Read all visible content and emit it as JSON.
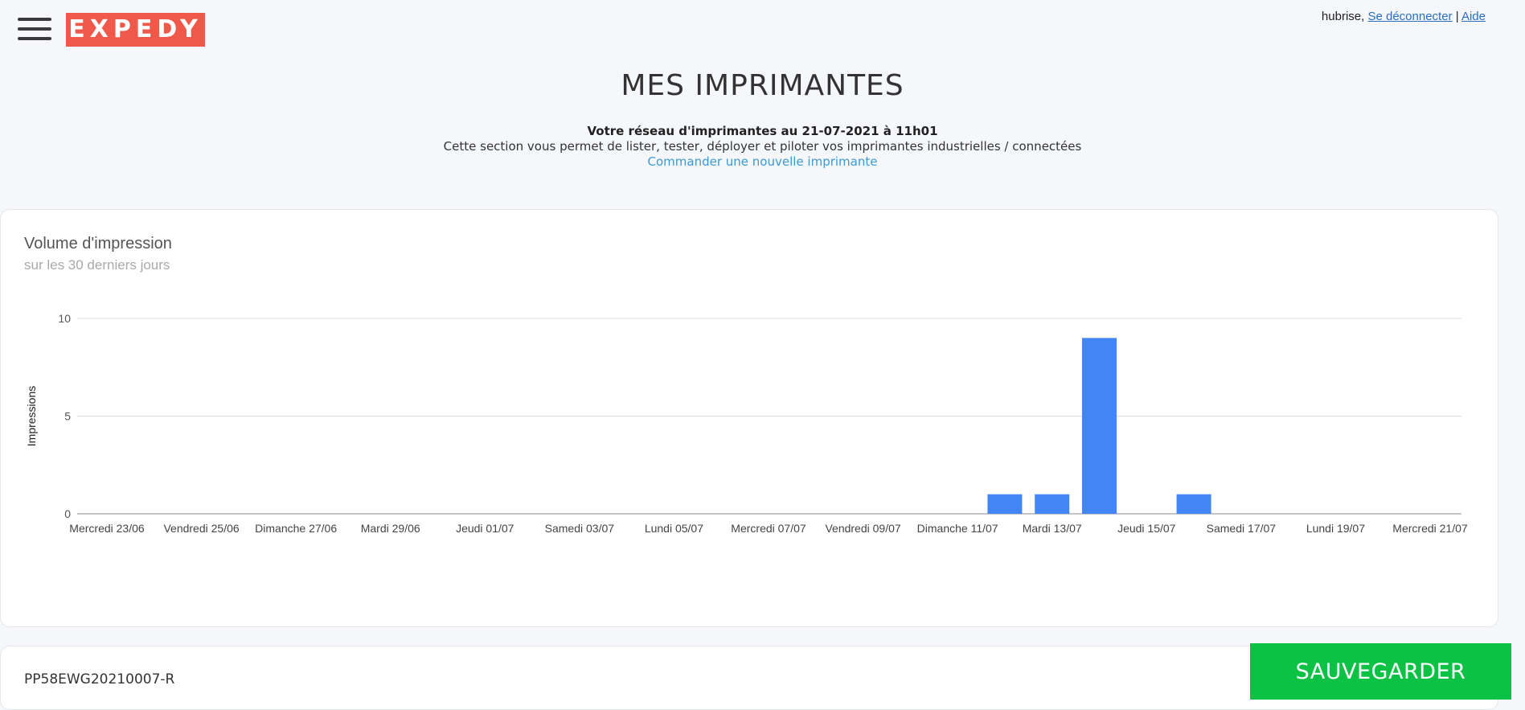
{
  "header": {
    "logo_text": "EXPEDY",
    "user_name": "hubrise,",
    "logout_label": "Se déconnecter",
    "separator": "|",
    "help_label": "Aide"
  },
  "page": {
    "title": "MES IMPRIMANTES",
    "network_line": "Votre réseau d'imprimantes au 21-07-2021 à 11h01",
    "description": "Cette section vous permet de lister, tester, déployer et piloter vos imprimantes industrielles / connectées",
    "order_link": "Commander une nouvelle imprimante"
  },
  "chart_card": {
    "title": "Volume d'impression",
    "subtitle": "sur les 30 derniers jours"
  },
  "chart_data": {
    "type": "bar",
    "title": "Volume d'impression",
    "subtitle": "sur les 30 derniers jours",
    "ylabel": "Impressions",
    "xlabel": "",
    "ylim": [
      0,
      10
    ],
    "yticks": [
      0,
      5,
      10
    ],
    "categories": [
      "23/06",
      "24/06",
      "25/06",
      "26/06",
      "27/06",
      "28/06",
      "29/06",
      "30/06",
      "01/07",
      "02/07",
      "03/07",
      "04/07",
      "05/07",
      "06/07",
      "07/07",
      "08/07",
      "09/07",
      "10/07",
      "11/07",
      "12/07",
      "13/07",
      "14/07",
      "15/07",
      "16/07",
      "17/07",
      "18/07",
      "19/07",
      "20/07",
      "21/07"
    ],
    "values": [
      0,
      0,
      0,
      0,
      0,
      0,
      0,
      0,
      0,
      0,
      0,
      0,
      0,
      0,
      0,
      0,
      0,
      0,
      0,
      1,
      1,
      9,
      0,
      1,
      0,
      0,
      0,
      0,
      0
    ],
    "xtick_labels": [
      {
        "index": 0,
        "label": "Mercredi 23/06"
      },
      {
        "index": 2,
        "label": "Vendredi 25/06"
      },
      {
        "index": 4,
        "label": "Dimanche 27/06"
      },
      {
        "index": 6,
        "label": "Mardi 29/06"
      },
      {
        "index": 8,
        "label": "Jeudi 01/07"
      },
      {
        "index": 10,
        "label": "Samedi 03/07"
      },
      {
        "index": 12,
        "label": "Lundi 05/07"
      },
      {
        "index": 14,
        "label": "Mercredi 07/07"
      },
      {
        "index": 16,
        "label": "Vendredi 09/07"
      },
      {
        "index": 18,
        "label": "Dimanche 11/07"
      },
      {
        "index": 20,
        "label": "Mardi 13/07"
      },
      {
        "index": 22,
        "label": "Jeudi 15/07"
      },
      {
        "index": 24,
        "label": "Samedi 17/07"
      },
      {
        "index": 26,
        "label": "Lundi 19/07"
      },
      {
        "index": 28,
        "label": "Mercredi 21/07"
      }
    ],
    "bar_color": "#4285f4",
    "grid": true,
    "legend": "none"
  },
  "printer": {
    "id": "PP58EWG20210007-R"
  },
  "actions": {
    "save_label": "SAUVEGARDER"
  },
  "colors": {
    "brand": "#f0584a",
    "save": "#0cc244",
    "link": "#3a9ad9"
  }
}
